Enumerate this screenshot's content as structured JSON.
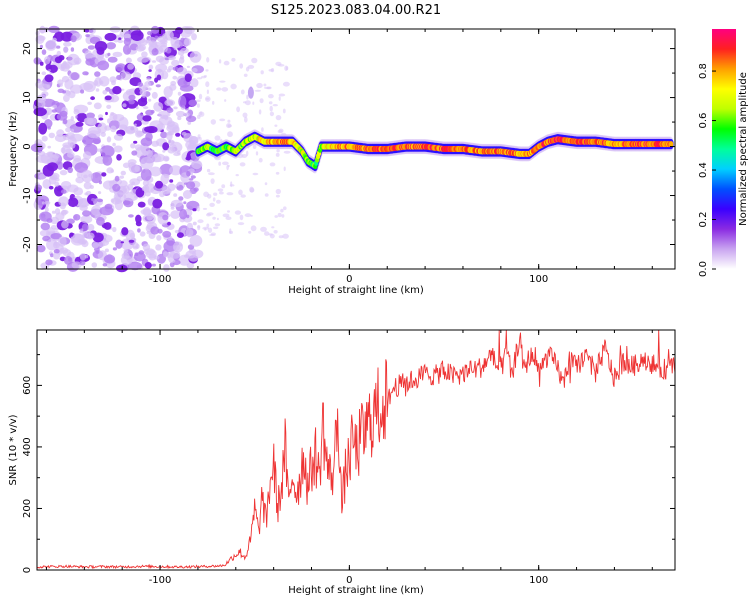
{
  "title": "S125.2023.083.04.00.R21",
  "chart_data": [
    {
      "type": "heatmap",
      "xlabel": "Height of straight line (km)",
      "ylabel": "Frequency (Hz)",
      "xlim": [
        -165,
        172
      ],
      "ylim": [
        -25,
        24
      ],
      "xticks": [
        -100,
        0,
        100
      ],
      "yticks": [
        -20,
        -10,
        0,
        10,
        20
      ],
      "colorbar": {
        "label": "Normalized spectral amplitude",
        "range": [
          0.0,
          0.97
        ],
        "ticks": [
          0.0,
          0.2,
          0.4,
          0.6,
          0.8
        ],
        "colors": [
          "#ffffff",
          "#c9a4f0",
          "#8a2be2",
          "#3a00ff",
          "#0050ff",
          "#00d0ff",
          "#00ff9a",
          "#00ff00",
          "#bfff00",
          "#ffff00",
          "#ffa000",
          "#ff2020",
          "#ff0080"
        ]
      },
      "noise_region_x": [
        -165,
        -80
      ],
      "signal_track": {
        "x": [
          -80,
          -75,
          -70,
          -65,
          -60,
          -55,
          -50,
          -45,
          -40,
          -35,
          -30,
          -25,
          -22,
          -18,
          -15,
          -10,
          0,
          10,
          20,
          30,
          40,
          50,
          60,
          70,
          80,
          90,
          95,
          100,
          105,
          110,
          120,
          130,
          140,
          150,
          160,
          170
        ],
        "y": [
          -1,
          0,
          -1,
          0,
          -1,
          1,
          2,
          1,
          1,
          1,
          1,
          -1,
          -3,
          -4,
          0,
          0,
          0,
          -0.5,
          -0.5,
          0,
          0,
          -0.5,
          -0.5,
          -1,
          -1,
          -1.5,
          -1.5,
          0,
          1,
          1.5,
          1,
          1,
          0.5,
          0.5,
          0.5,
          0.5
        ],
        "amplitude": [
          0.45,
          0.5,
          0.4,
          0.45,
          0.5,
          0.55,
          0.6,
          0.7,
          0.75,
          0.8,
          0.7,
          0.6,
          0.5,
          0.45,
          0.55,
          0.7,
          0.8,
          0.85,
          0.85,
          0.8,
          0.85,
          0.85,
          0.8,
          0.8,
          0.8,
          0.8,
          0.75,
          0.8,
          0.85,
          0.9,
          0.85,
          0.85,
          0.8,
          0.85,
          0.85,
          0.8
        ]
      }
    },
    {
      "type": "line",
      "xlabel": "Height of straight line (km)",
      "ylabel": "SNR (10 * v/v)",
      "xlim": [
        -165,
        172
      ],
      "ylim": [
        0,
        780
      ],
      "xticks": [
        -100,
        0,
        100
      ],
      "yticks": [
        0,
        200,
        400,
        600
      ],
      "color": "#ee3333",
      "series": [
        {
          "x": [
            -165,
            -150,
            -140,
            -130,
            -120,
            -110,
            -100,
            -90,
            -80,
            -75,
            -70,
            -66,
            -62,
            -58,
            -55,
            -52,
            -50,
            -48,
            -46,
            -44,
            -42,
            -40,
            -38,
            -36,
            -34,
            -32,
            -30,
            -28,
            -26,
            -24,
            -22,
            -20,
            -18,
            -16,
            -14,
            -12,
            -10,
            -8,
            -6,
            -4,
            -2,
            0,
            2,
            4,
            6,
            8,
            10,
            12,
            15,
            18,
            20,
            23,
            26,
            30,
            35,
            40,
            45,
            50,
            55,
            60,
            65,
            70,
            75,
            80,
            83,
            86,
            88,
            90,
            92,
            95,
            98,
            100,
            105,
            110,
            113,
            116,
            120,
            125,
            130,
            135,
            140,
            145,
            150,
            155,
            160,
            165,
            170,
            172
          ],
          "y": [
            10,
            12,
            10,
            11,
            10,
            12,
            11,
            10,
            11,
            12,
            13,
            15,
            40,
            60,
            40,
            100,
            200,
            120,
            240,
            150,
            280,
            350,
            200,
            260,
            400,
            200,
            320,
            250,
            300,
            380,
            270,
            330,
            380,
            300,
            480,
            350,
            300,
            330,
            540,
            200,
            320,
            360,
            420,
            380,
            430,
            440,
            470,
            500,
            520,
            560,
            540,
            590,
            600,
            610,
            620,
            640,
            630,
            650,
            630,
            640,
            650,
            660,
            700,
            640,
            720,
            620,
            700,
            760,
            650,
            690,
            700,
            640,
            700,
            660,
            600,
            680,
            660,
            700,
            640,
            720,
            620,
            680,
            660,
            690,
            670,
            650,
            660,
            665
          ]
        }
      ]
    }
  ]
}
